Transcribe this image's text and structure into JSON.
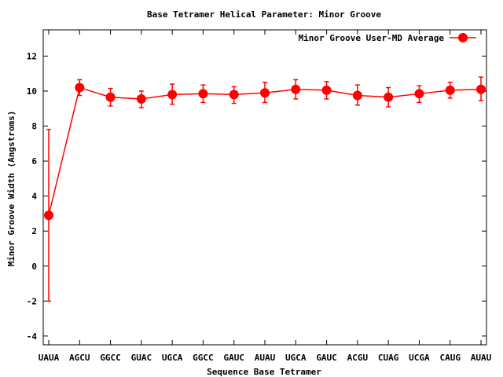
{
  "chart_data": {
    "type": "line",
    "title": "Base Tetramer Helical Parameter: Minor Groove",
    "xlabel": "Sequence Base Tetramer",
    "ylabel": "Minor Groove Width (Angstroms)",
    "categories": [
      "UAUA",
      "AGCU",
      "GGCC",
      "GUAC",
      "UGCA",
      "GGCC",
      "GAUC",
      "AUAU",
      "UGCA",
      "GAUC",
      "ACGU",
      "CUAG",
      "UCGA",
      "CAUG",
      "AUAU"
    ],
    "ylim": [
      -4.5,
      13.5
    ],
    "yticks": [
      -4,
      -2,
      0,
      2,
      4,
      6,
      8,
      10,
      12
    ],
    "ytick_labels": [
      "-4",
      "-2",
      "0",
      "2",
      "4",
      "6",
      "8",
      "10",
      "12"
    ],
    "grid": false,
    "legend_position": "top-right",
    "series": [
      {
        "name": "Minor Groove User-MD Average",
        "color": "#ff0000",
        "values": [
          2.9,
          10.2,
          9.65,
          9.55,
          9.8,
          9.85,
          9.8,
          9.9,
          10.1,
          10.05,
          9.75,
          9.65,
          9.85,
          10.05,
          10.1
        ],
        "error_low": [
          -2.0,
          9.75,
          9.15,
          9.05,
          9.25,
          9.35,
          9.3,
          9.35,
          9.55,
          9.55,
          9.2,
          9.1,
          9.35,
          9.6,
          9.45
        ],
        "error_high": [
          7.8,
          10.65,
          10.15,
          10.0,
          10.4,
          10.35,
          10.25,
          10.5,
          10.65,
          10.55,
          10.35,
          10.2,
          10.3,
          10.5,
          10.8
        ]
      }
    ]
  }
}
